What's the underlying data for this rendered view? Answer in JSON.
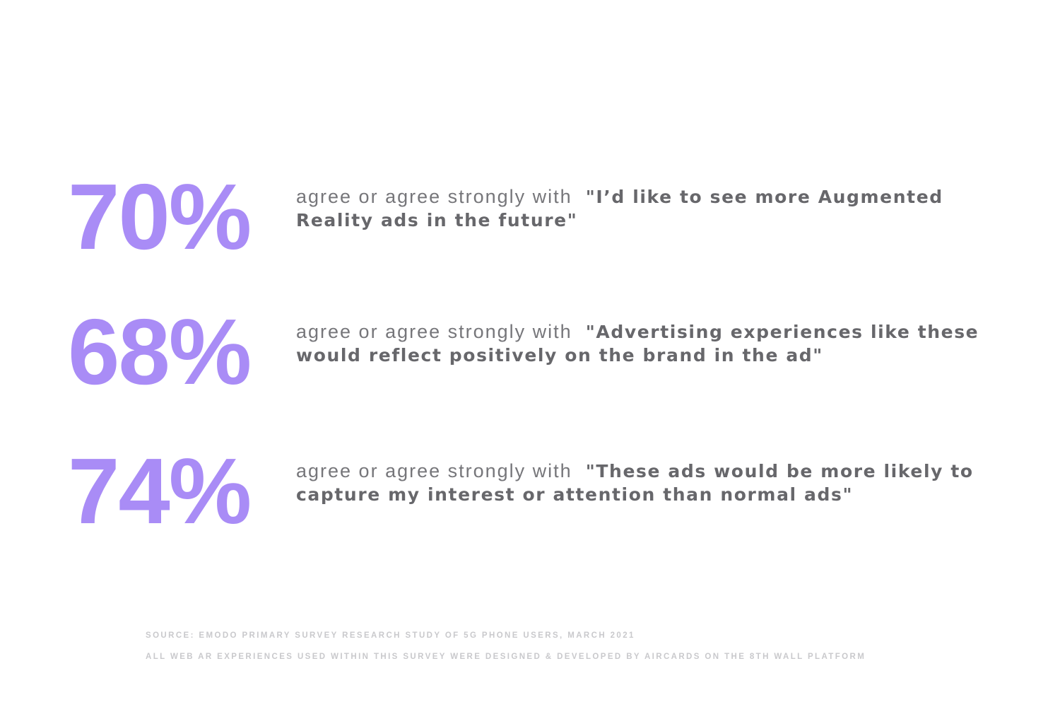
{
  "stats": [
    {
      "value": "70%",
      "lead": "agree or agree strongly with",
      "quote": "\"I’d like to see more Augmented Reality ads in the future\""
    },
    {
      "value": "68%",
      "lead": "agree or agree strongly with",
      "quote": "\"Advertising experiences like these would reflect positively on the brand in the ad\""
    },
    {
      "value": "74%",
      "lead": "agree or agree strongly with",
      "quote": "\"These ads would be more likely to capture my interest or attention than normal ads\""
    }
  ],
  "footer": {
    "source": "SOURCE: EMODO PRIMARY SURVEY RESEARCH STUDY OF 5G PHONE USERS, MARCH 2021",
    "note": "ALL WEB AR EXPERIENCES USED WITHIN THIS SURVEY WERE DESIGNED & DEVELOPED BY AIRCARDS ON THE 8TH WALL PLATFORM"
  }
}
